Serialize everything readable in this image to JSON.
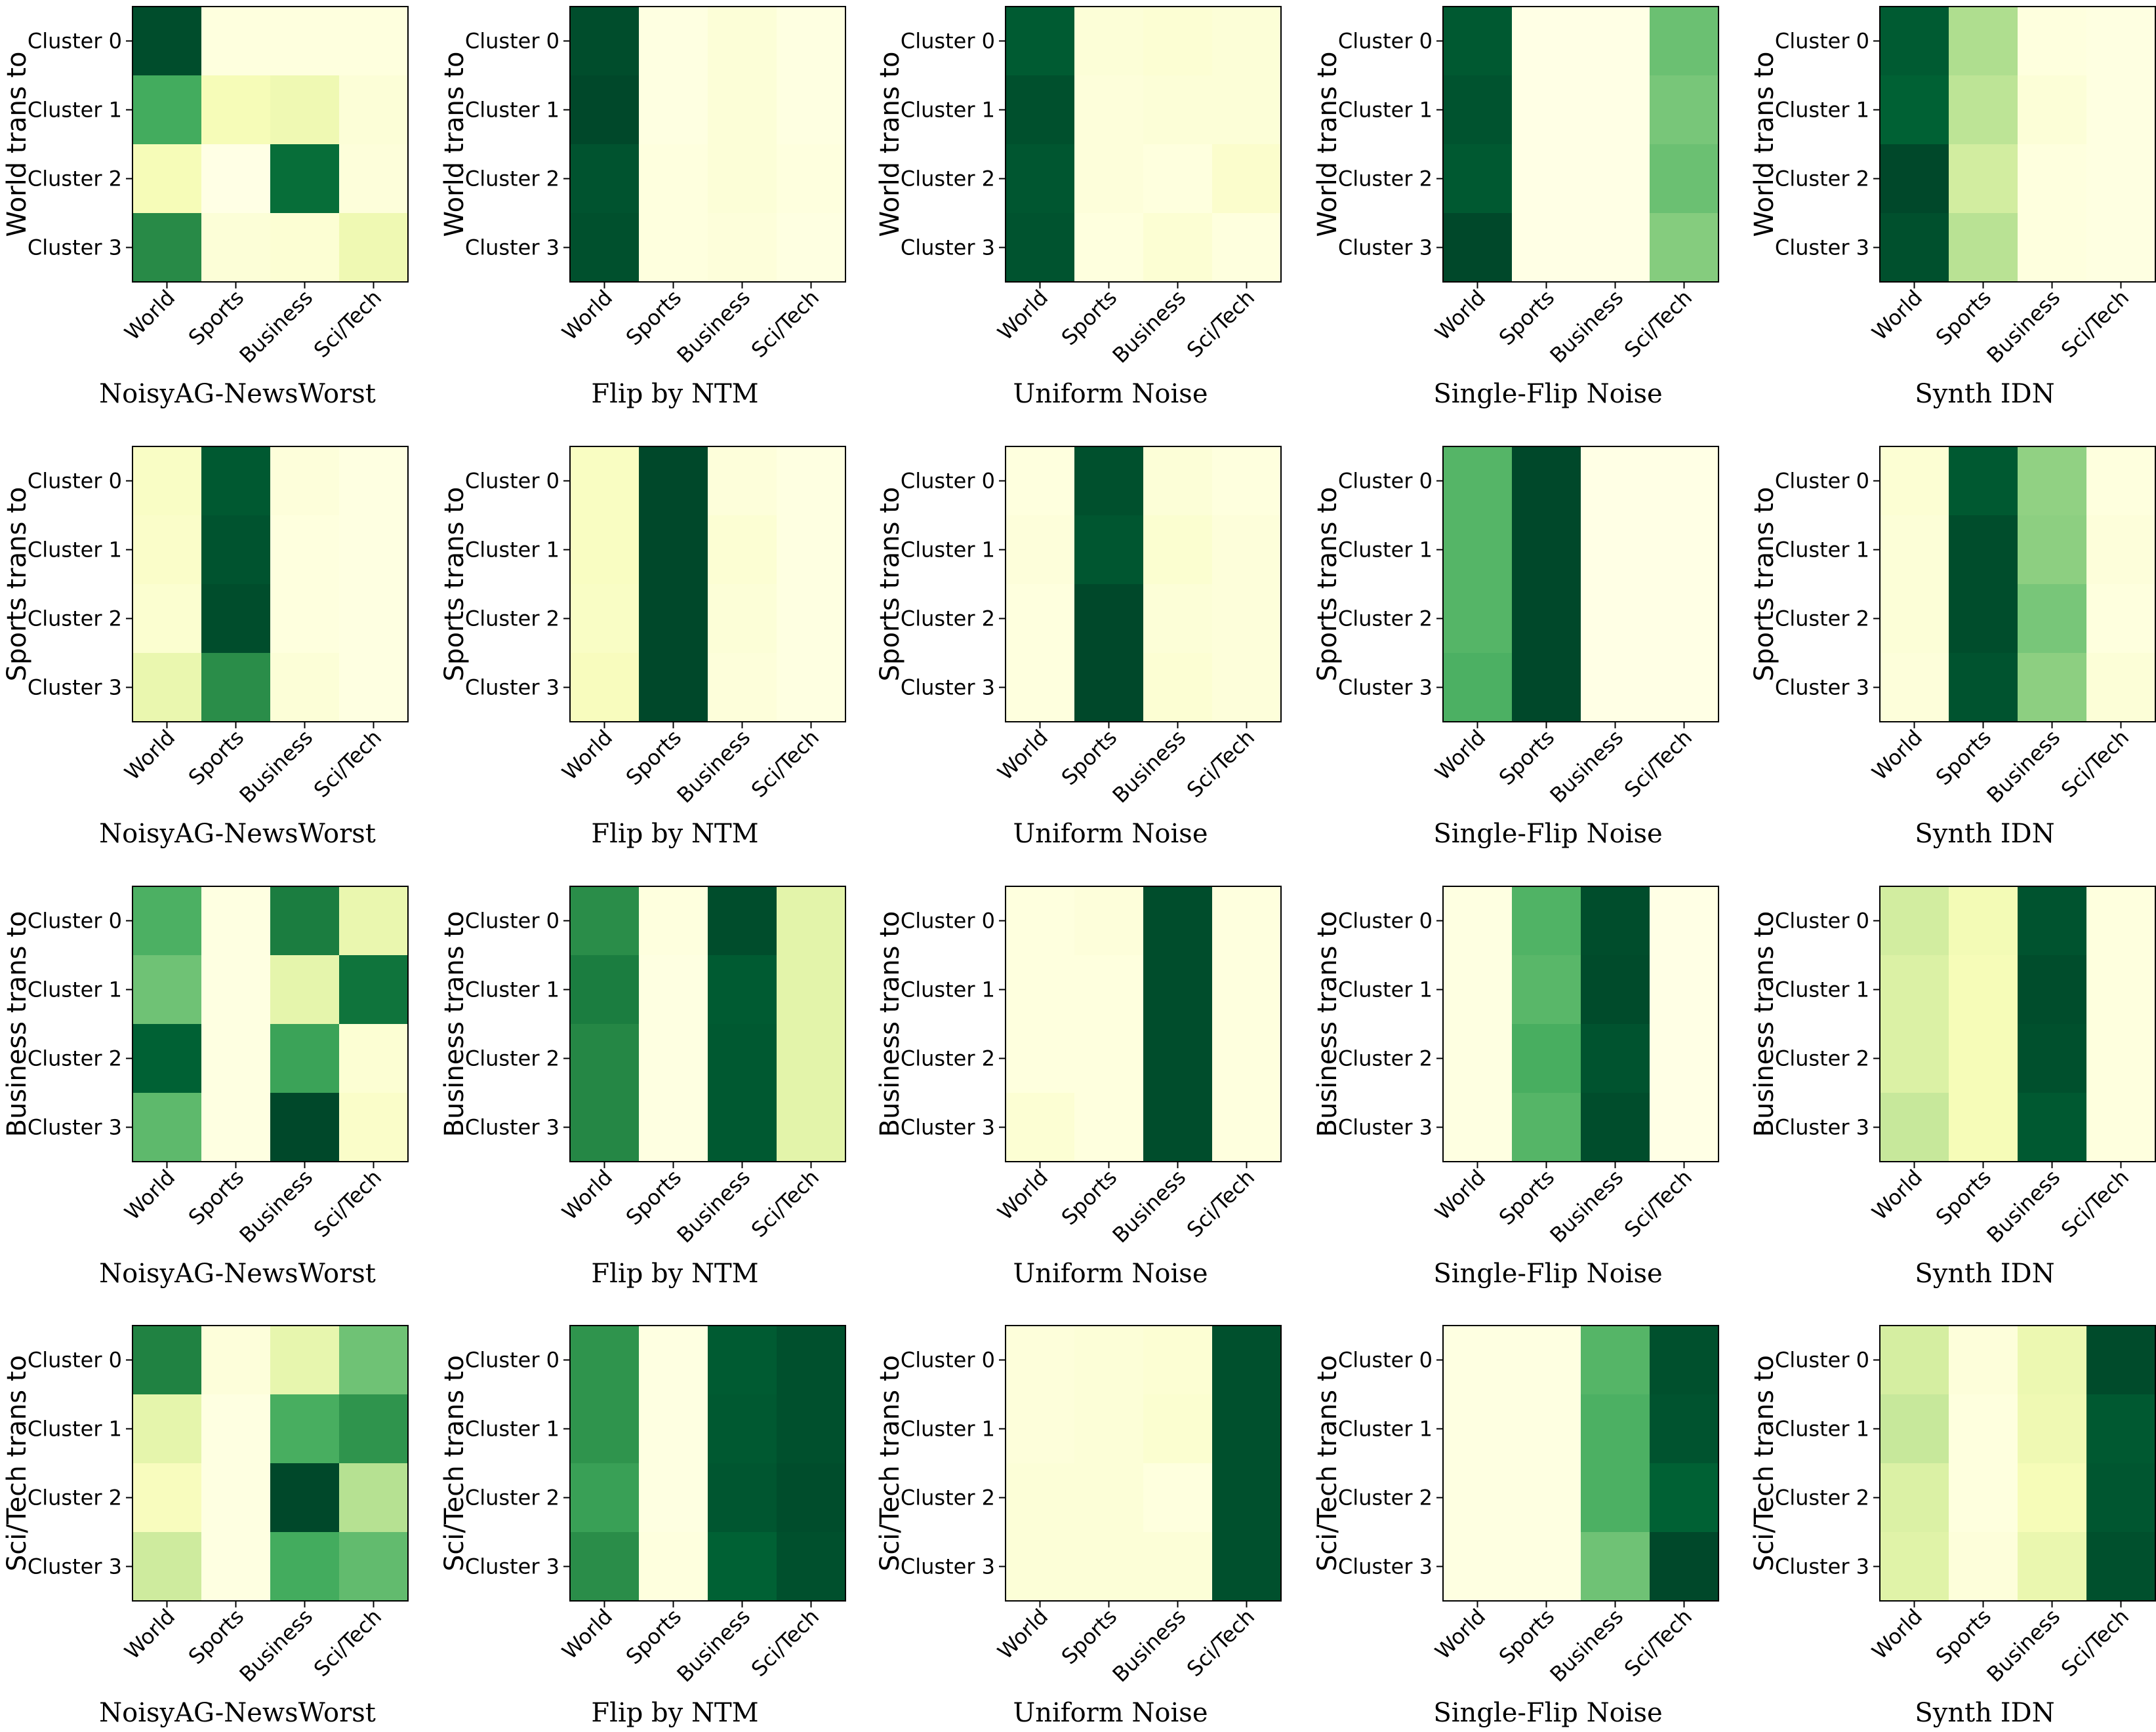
{
  "chart_data": {
    "type": "heatmap",
    "grid": false,
    "colormap": "YlGn",
    "colormap_stops": [
      "#ffffe5",
      "#f7fcb9",
      "#d9f0a3",
      "#addd8e",
      "#78c679",
      "#41ab5d",
      "#238443",
      "#006837",
      "#004529"
    ],
    "border_color": "#000000",
    "value_range": [
      0,
      1
    ],
    "classes": [
      "World",
      "Sports",
      "Business",
      "Sci/Tech"
    ],
    "clusters": [
      "Cluster 0",
      "Cluster 1",
      "Cluster 2",
      "Cluster 3"
    ],
    "rows": [
      {
        "ylabel": "World trans to",
        "panels": [
          {
            "title": "NoisyAG-NewsWorst",
            "z": [
              [
                0.97,
                0.02,
                0.02,
                0.02
              ],
              [
                0.62,
                0.13,
                0.16,
                0.04
              ],
              [
                0.13,
                0.0,
                0.85,
                0.03
              ],
              [
                0.73,
                0.04,
                0.05,
                0.16
              ]
            ]
          },
          {
            "title": "Flip by NTM",
            "z": [
              [
                0.97,
                0.01,
                0.04,
                0.01
              ],
              [
                0.99,
                0.01,
                0.04,
                0.01
              ],
              [
                0.95,
                0.02,
                0.04,
                0.02
              ],
              [
                0.96,
                0.02,
                0.03,
                0.01
              ]
            ]
          },
          {
            "title": "Uniform Noise",
            "z": [
              [
                0.92,
                0.04,
                0.05,
                0.04
              ],
              [
                0.96,
                0.03,
                0.04,
                0.04
              ],
              [
                0.94,
                0.03,
                0.02,
                0.07
              ],
              [
                0.95,
                0.02,
                0.05,
                0.02
              ]
            ]
          },
          {
            "title": "Single-Flip Noise",
            "z": [
              [
                0.93,
                0.0,
                0.0,
                0.53
              ],
              [
                0.95,
                0.0,
                0.0,
                0.5
              ],
              [
                0.93,
                0.0,
                0.0,
                0.53
              ],
              [
                0.99,
                0.0,
                0.0,
                0.47
              ]
            ]
          },
          {
            "title": "Synth IDN",
            "z": [
              [
                0.92,
                0.37,
                0.02,
                0.01
              ],
              [
                0.9,
                0.33,
                0.04,
                0.01
              ],
              [
                0.99,
                0.27,
                0.02,
                0.01
              ],
              [
                0.96,
                0.34,
                0.02,
                0.01
              ]
            ]
          }
        ]
      },
      {
        "ylabel": "Sports trans to",
        "panels": [
          {
            "title": "NoisyAG-NewsWorst",
            "z": [
              [
                0.09,
                0.93,
                0.03,
                0.01
              ],
              [
                0.08,
                0.95,
                0.02,
                0.01
              ],
              [
                0.06,
                0.97,
                0.02,
                0.01
              ],
              [
                0.18,
                0.72,
                0.04,
                0.01
              ]
            ]
          },
          {
            "title": "Flip by NTM",
            "z": [
              [
                0.1,
                0.99,
                0.03,
                0.01
              ],
              [
                0.1,
                0.99,
                0.05,
                0.01
              ],
              [
                0.09,
                0.99,
                0.04,
                0.01
              ],
              [
                0.11,
                0.99,
                0.03,
                0.01
              ]
            ]
          },
          {
            "title": "Uniform Noise",
            "z": [
              [
                0.02,
                0.96,
                0.04,
                0.02
              ],
              [
                0.03,
                0.94,
                0.06,
                0.03
              ],
              [
                0.02,
                0.99,
                0.04,
                0.03
              ],
              [
                0.02,
                0.99,
                0.05,
                0.03
              ]
            ]
          },
          {
            "title": "Single-Flip Noise",
            "z": [
              [
                0.58,
                0.99,
                0.0,
                0.0
              ],
              [
                0.58,
                0.99,
                0.0,
                0.0
              ],
              [
                0.58,
                0.99,
                0.0,
                0.0
              ],
              [
                0.6,
                0.99,
                0.0,
                0.0
              ]
            ]
          },
          {
            "title": "Synth IDN",
            "z": [
              [
                0.05,
                0.93,
                0.44,
                0.02
              ],
              [
                0.04,
                0.97,
                0.45,
                0.03
              ],
              [
                0.04,
                0.97,
                0.5,
                0.02
              ],
              [
                0.03,
                0.95,
                0.45,
                0.04
              ]
            ]
          }
        ]
      },
      {
        "ylabel": "Business trans to",
        "panels": [
          {
            "title": "NoisyAG-NewsWorst",
            "z": [
              [
                0.6,
                0.01,
                0.78,
                0.18
              ],
              [
                0.52,
                0.01,
                0.2,
                0.82
              ],
              [
                0.9,
                0.01,
                0.65,
                0.05
              ],
              [
                0.56,
                0.01,
                0.99,
                0.08
              ]
            ]
          },
          {
            "title": "Flip by NTM",
            "z": [
              [
                0.72,
                0.02,
                0.97,
                0.21
              ],
              [
                0.78,
                0.01,
                0.92,
                0.21
              ],
              [
                0.74,
                0.01,
                0.93,
                0.21
              ],
              [
                0.74,
                0.01,
                0.93,
                0.21
              ]
            ]
          },
          {
            "title": "Uniform Noise",
            "z": [
              [
                0.02,
                0.03,
                0.97,
                0.02
              ],
              [
                0.02,
                0.02,
                0.97,
                0.02
              ],
              [
                0.02,
                0.02,
                0.97,
                0.02
              ],
              [
                0.05,
                0.02,
                0.97,
                0.02
              ]
            ]
          },
          {
            "title": "Single-Flip Noise",
            "z": [
              [
                0.01,
                0.59,
                0.97,
                0.0
              ],
              [
                0.01,
                0.57,
                0.98,
                0.0
              ],
              [
                0.01,
                0.61,
                0.95,
                0.0
              ],
              [
                0.01,
                0.58,
                0.97,
                0.0
              ]
            ]
          },
          {
            "title": "Synth IDN",
            "z": [
              [
                0.27,
                0.14,
                0.95,
                0.02
              ],
              [
                0.24,
                0.13,
                0.97,
                0.02
              ],
              [
                0.24,
                0.13,
                0.96,
                0.02
              ],
              [
                0.3,
                0.13,
                0.93,
                0.02
              ]
            ]
          }
        ]
      },
      {
        "ylabel": "Sci/Tech trans to",
        "panels": [
          {
            "title": "NoisyAG-NewsWorst",
            "z": [
              [
                0.76,
                0.03,
                0.19,
                0.52
              ],
              [
                0.2,
                0.01,
                0.61,
                0.7
              ],
              [
                0.11,
                0.01,
                0.99,
                0.35
              ],
              [
                0.28,
                0.01,
                0.62,
                0.55
              ]
            ]
          },
          {
            "title": "Flip by NTM",
            "z": [
              [
                0.7,
                0.01,
                0.92,
                0.96
              ],
              [
                0.7,
                0.01,
                0.93,
                0.96
              ],
              [
                0.66,
                0.01,
                0.94,
                0.97
              ],
              [
                0.72,
                0.02,
                0.9,
                0.96
              ]
            ]
          },
          {
            "title": "Uniform Noise",
            "z": [
              [
                0.03,
                0.04,
                0.05,
                0.96
              ],
              [
                0.03,
                0.04,
                0.06,
                0.96
              ],
              [
                0.04,
                0.04,
                0.02,
                0.96
              ],
              [
                0.04,
                0.04,
                0.04,
                0.96
              ]
            ]
          },
          {
            "title": "Single-Flip Noise",
            "z": [
              [
                0.01,
                0.01,
                0.58,
                0.96
              ],
              [
                0.01,
                0.01,
                0.6,
                0.95
              ],
              [
                0.01,
                0.01,
                0.6,
                0.9
              ],
              [
                0.01,
                0.01,
                0.52,
                0.99
              ]
            ]
          },
          {
            "title": "Synth IDN",
            "z": [
              [
                0.26,
                0.03,
                0.17,
                0.98
              ],
              [
                0.3,
                0.02,
                0.16,
                0.93
              ],
              [
                0.24,
                0.02,
                0.13,
                0.94
              ],
              [
                0.22,
                0.03,
                0.18,
                0.96
              ]
            ]
          }
        ]
      }
    ]
  }
}
